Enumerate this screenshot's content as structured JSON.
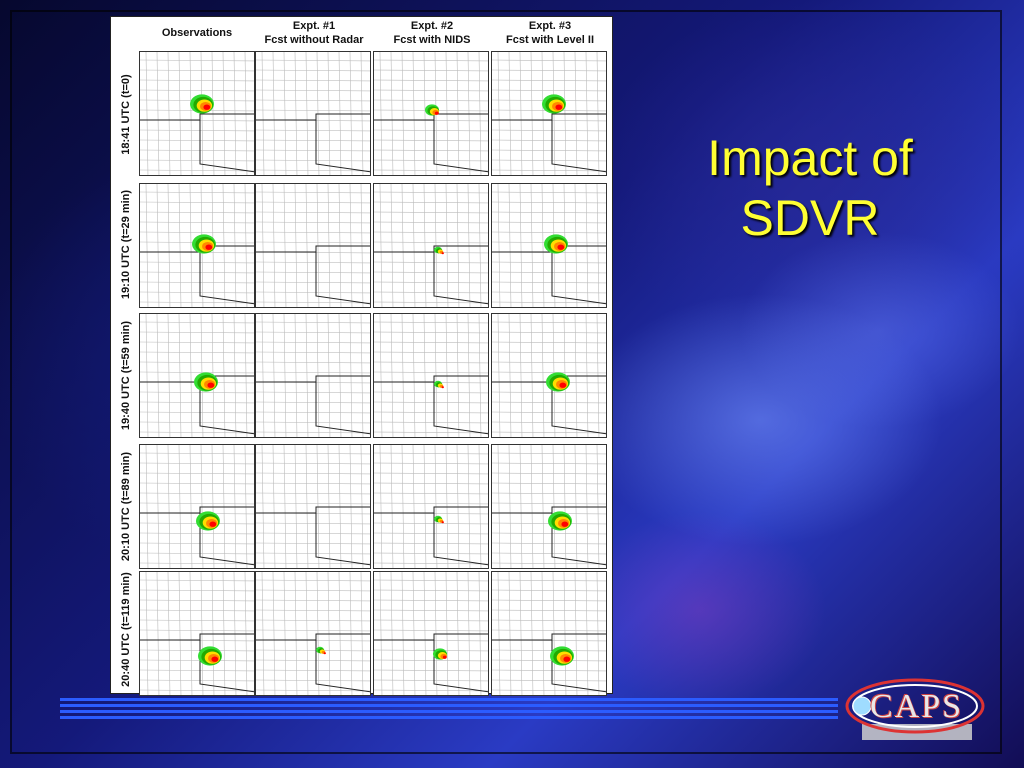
{
  "slide": {
    "title_line1": "Impact of",
    "title_line2": "SDVR",
    "logo_text": "CAPS"
  },
  "figure": {
    "columns": [
      {
        "line1": "",
        "line2": "Observations"
      },
      {
        "line1": "Expt. #1",
        "line2": "Fcst without Radar"
      },
      {
        "line1": "Expt. #2",
        "line2": "Fcst with NIDS"
      },
      {
        "line1": "Expt. #3",
        "line2": "Fcst with Level II"
      }
    ],
    "rows": [
      "18:41 UTC (t=0)",
      "19:10 UTC (t=29 min)",
      "19:40 UTC (t=59 min)",
      "20:10 UTC (t=89 min)",
      "20:40 UTC (t=119 min)"
    ]
  },
  "colors": {
    "title": "#ffff33",
    "rule": "#2b5cff",
    "background": "#14197a"
  }
}
